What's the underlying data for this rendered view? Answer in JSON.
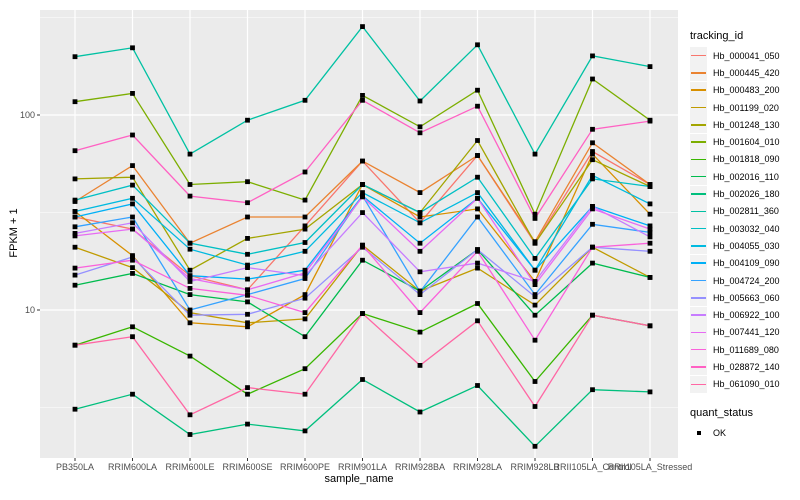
{
  "figure": {
    "background": "#FFFFFF",
    "panel_background": "#EBEBEB",
    "gridline_color": "#FFFFFF",
    "axis_text_color": "#4D4D4D",
    "axis_title_color": "#000000",
    "point_color": "#000000",
    "legend_key_background": "#F2F2F2"
  },
  "chart_data": {
    "type": "line",
    "title": "",
    "xlabel": "sample_name",
    "ylabel": "FPKM + 1",
    "y_scale": "log10",
    "y_ticks": [
      10,
      100
    ],
    "y_minor_ticks": [
      3.162,
      31.62,
      316.2
    ],
    "ylim": [
      1.7,
      360
    ],
    "grid": true,
    "legend_position": "right",
    "marker": "black-square",
    "categories": [
      "PB350LA",
      "RRIM600LA",
      "RRIM600LE",
      "RRIM600SE",
      "RRIM600PE",
      "RRIM901LA",
      "RRIM928BA",
      "RRIM928LA",
      "RRIM928LB",
      "RRII105LA_Control",
      "RRII105LA_Stressed"
    ],
    "series": [
      {
        "name": "Hb_000041_050",
        "color": "#F8766D",
        "values": [
          30,
          26,
          15,
          12.7,
          27,
          58,
          28,
          62,
          22,
          65,
          44
        ]
      },
      {
        "name": "Hb_000445_420",
        "color": "#EA8331",
        "values": [
          36,
          55,
          22,
          30,
          30,
          58,
          40,
          62,
          22.4,
          72,
          44
        ]
      },
      {
        "name": "Hb_000483_200",
        "color": "#D89000",
        "values": [
          32,
          19,
          8.6,
          8.2,
          12,
          44,
          30,
          33,
          14,
          63,
          31
        ]
      },
      {
        "name": "Hb_001199_020",
        "color": "#C09B00",
        "values": [
          21,
          16.5,
          9.7,
          8.6,
          9,
          21.5,
          12.5,
          16.4,
          10.6,
          21,
          14.7
        ]
      },
      {
        "name": "Hb_001248_130",
        "color": "#A3A500",
        "values": [
          47,
          48,
          16,
          23.3,
          26,
          44,
          31.6,
          74,
          22,
          59,
          43
        ]
      },
      {
        "name": "Hb_001604_010",
        "color": "#7CAE00",
        "values": [
          117,
          129,
          44,
          45.5,
          36.6,
          126,
          87,
          134,
          31,
          153,
          94
        ]
      },
      {
        "name": "Hb_001818_090",
        "color": "#39B600",
        "values": [
          6.6,
          8.2,
          5.8,
          3.7,
          5,
          9.6,
          7.7,
          10.8,
          4.3,
          9.4,
          8.3
        ]
      },
      {
        "name": "Hb_002016_110",
        "color": "#00BB4E",
        "values": [
          13.4,
          15.4,
          12,
          11,
          7.3,
          18,
          12.5,
          20.4,
          9.4,
          17.4,
          14.7
        ]
      },
      {
        "name": "Hb_002026_180",
        "color": "#00BF7D",
        "values": [
          3.1,
          3.7,
          2.3,
          2.6,
          2.4,
          4.4,
          3,
          4.1,
          2,
          3.9,
          3.8
        ]
      },
      {
        "name": "Hb_002811_360",
        "color": "#00C1A3",
        "values": [
          199,
          221,
          63,
          94,
          119,
          284,
          118,
          229,
          63,
          201,
          177
        ]
      },
      {
        "name": "Hb_003032_040",
        "color": "#00BFC4",
        "values": [
          36.6,
          43.7,
          22,
          19.3,
          22.2,
          44,
          31.6,
          48,
          18.4,
          47,
          43
        ]
      },
      {
        "name": "Hb_004055_030",
        "color": "#00BAE0",
        "values": [
          32,
          37.4,
          20.5,
          17,
          20,
          40,
          28,
          40,
          16,
          49,
          35
        ]
      },
      {
        "name": "Hb_004109_090",
        "color": "#00B0F6",
        "values": [
          30,
          35,
          15,
          14.4,
          16,
          38.5,
          22,
          37.4,
          16,
          34,
          27
        ]
      },
      {
        "name": "Hb_004724_200",
        "color": "#35A2FF",
        "values": [
          26.7,
          30,
          10,
          12,
          14.5,
          38.5,
          12.4,
          30,
          12,
          27.5,
          25
        ]
      },
      {
        "name": "Hb_005663_060",
        "color": "#9590FF",
        "values": [
          15.1,
          18.7,
          9.4,
          9.5,
          11.5,
          21,
          12,
          20.4,
          11.7,
          21,
          20
        ]
      },
      {
        "name": "Hb_006922_100",
        "color": "#C77CFF",
        "values": [
          24.7,
          28,
          14,
          16.5,
          15,
          31.6,
          15.7,
          17.4,
          14,
          34,
          23.7
        ]
      },
      {
        "name": "Hb_007441_120",
        "color": "#E76BF3",
        "values": [
          24,
          26,
          14.5,
          12.7,
          15.5,
          38,
          20,
          37.4,
          13.5,
          33,
          26
        ]
      },
      {
        "name": "Hb_011689_080",
        "color": "#FA62DB",
        "values": [
          16.4,
          18,
          12.9,
          11.9,
          9.7,
          21.5,
          9.7,
          20,
          7,
          21,
          22
        ]
      },
      {
        "name": "Hb_028872_140",
        "color": "#FF61C3",
        "values": [
          65.6,
          79,
          38.4,
          35.5,
          51,
          119,
          81,
          111,
          29.5,
          84.5,
          93
        ]
      },
      {
        "name": "Hb_061090_010",
        "color": "#FF67A4",
        "values": [
          6.6,
          7.3,
          2.9,
          4,
          3.7,
          9.6,
          5.2,
          8.8,
          3.2,
          9.4,
          8.3
        ]
      }
    ],
    "legend": {
      "tracking_title": "tracking_id",
      "quant_title": "quant_status",
      "quant_items": [
        {
          "label": "OK"
        }
      ]
    }
  }
}
